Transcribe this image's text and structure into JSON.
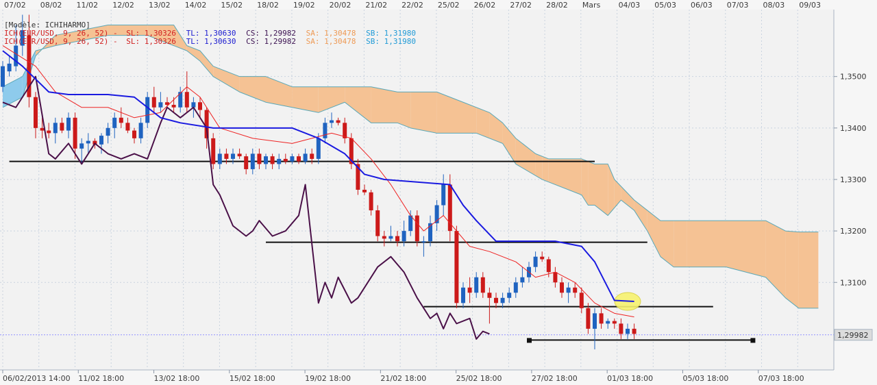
{
  "chart_data": {
    "type": "candlestick",
    "instrument": "EUR/USD",
    "header": "[Modèle: ICHIHARMO]",
    "indicator_lines": [
      {
        "prefix": "ICH(EUR/USD, 9, 26, 52) -",
        "items": [
          {
            "text": "SL: 1,30326",
            "color": "#d02020"
          },
          {
            "text": "TL: 1,30630",
            "color": "#1a1ad0"
          },
          {
            "text": "CS: 1,29982",
            "color": "#3a1050"
          },
          {
            "text": "SA: 1,30478",
            "color": "#ee9a55"
          },
          {
            "text": "SB: 1,31980",
            "color": "#1f9ad6"
          }
        ]
      },
      {
        "prefix": "ICH(EUR/USD, 9, 26, 52) -",
        "items": [
          {
            "text": "SL: 1,30326",
            "color": "#d02020"
          },
          {
            "text": "TL: 1,30630",
            "color": "#1a1ad0"
          },
          {
            "text": "CS: 1,29982",
            "color": "#3a1050"
          },
          {
            "text": "SA: 1,30478",
            "color": "#ee9a55"
          },
          {
            "text": "SB: 1,31980",
            "color": "#1f9ad6"
          }
        ]
      }
    ],
    "top_dates": [
      "07/02",
      "08/02",
      "11/02",
      "12/02",
      "13/02",
      "14/02",
      "15/02",
      "18/02",
      "19/02",
      "20/02",
      "21/02",
      "22/02",
      "25/02",
      "26/02",
      "27/02",
      "28/02",
      "Mars",
      "04/03",
      "05/03",
      "06/03",
      "07/03",
      "08/03",
      "09/03"
    ],
    "bottom_dates": [
      "06/02/2013 14:00",
      "11/02 18:00",
      "13/02 18:00",
      "15/02 18:00",
      "19/02 18:00",
      "21/02 18:00",
      "25/02 18:00",
      "27/02 18:00",
      "01/03 18:00",
      "05/03 18:00",
      "07/03 18:00"
    ],
    "y_ticks": [
      "1,3500",
      "1,3400",
      "1,3300",
      "1,3200",
      "1,3100"
    ],
    "y_tick_values": [
      1.35,
      1.34,
      1.33,
      1.32,
      1.31
    ],
    "ylim": [
      1.293,
      1.363
    ],
    "current_price_label": "1,29982",
    "current_price": 1.29982,
    "colors": {
      "bull": "#1f63c0",
      "bear": "#cc1a1a",
      "tenkan": "#ee2222",
      "kijun": "#1a1ae0",
      "chikou": "#4a1048",
      "kumo_bull": "#8ecbec",
      "kumo_bear": "#f5c294",
      "kumo_edge": "#5aa8b8",
      "grid": "#c9d3df",
      "price_line": "#8f8fff"
    },
    "candles": [
      [
        1.348,
        1.353,
        1.347,
        1.352
      ],
      [
        1.351,
        1.354,
        1.35,
        1.3525
      ],
      [
        1.352,
        1.36,
        1.351,
        1.356
      ],
      [
        1.356,
        1.362,
        1.354,
        1.359
      ],
      [
        1.358,
        1.362,
        1.344,
        1.346
      ],
      [
        1.346,
        1.347,
        1.338,
        1.34
      ],
      [
        1.34,
        1.342,
        1.338,
        1.3395
      ],
      [
        1.3395,
        1.341,
        1.338,
        1.339
      ],
      [
        1.339,
        1.342,
        1.337,
        1.341
      ],
      [
        1.341,
        1.342,
        1.339,
        1.3395
      ],
      [
        1.3395,
        1.343,
        1.338,
        1.342
      ],
      [
        1.342,
        1.343,
        1.334,
        1.336
      ],
      [
        1.336,
        1.338,
        1.333,
        1.337
      ],
      [
        1.337,
        1.339,
        1.335,
        1.3375
      ],
      [
        1.3375,
        1.338,
        1.336,
        1.3368
      ],
      [
        1.3368,
        1.339,
        1.335,
        1.3385
      ],
      [
        1.3385,
        1.341,
        1.337,
        1.34
      ],
      [
        1.34,
        1.343,
        1.338,
        1.342
      ],
      [
        1.342,
        1.344,
        1.34,
        1.341
      ],
      [
        1.341,
        1.342,
        1.339,
        1.3395
      ],
      [
        1.3395,
        1.34,
        1.337,
        1.338
      ],
      [
        1.338,
        1.342,
        1.337,
        1.341
      ],
      [
        1.341,
        1.347,
        1.34,
        1.346
      ],
      [
        1.346,
        1.348,
        1.343,
        1.344
      ],
      [
        1.344,
        1.347,
        1.343,
        1.345
      ],
      [
        1.345,
        1.346,
        1.344,
        1.3445
      ],
      [
        1.3445,
        1.346,
        1.343,
        1.344
      ],
      [
        1.344,
        1.348,
        1.343,
        1.347
      ],
      [
        1.347,
        1.351,
        1.343,
        1.344
      ],
      [
        1.344,
        1.346,
        1.342,
        1.345
      ],
      [
        1.345,
        1.346,
        1.342,
        1.3435
      ],
      [
        1.3435,
        1.344,
        1.336,
        1.338
      ],
      [
        1.338,
        1.339,
        1.332,
        1.333
      ],
      [
        1.333,
        1.336,
        1.332,
        1.335
      ],
      [
        1.335,
        1.336,
        1.333,
        1.334
      ],
      [
        1.334,
        1.336,
        1.333,
        1.335
      ],
      [
        1.335,
        1.336,
        1.334,
        1.3345
      ],
      [
        1.3345,
        1.335,
        1.331,
        1.332
      ],
      [
        1.332,
        1.336,
        1.331,
        1.335
      ],
      [
        1.335,
        1.336,
        1.332,
        1.333
      ],
      [
        1.333,
        1.335,
        1.332,
        1.3345
      ],
      [
        1.3345,
        1.335,
        1.332,
        1.333
      ],
      [
        1.333,
        1.335,
        1.332,
        1.334
      ],
      [
        1.334,
        1.335,
        1.333,
        1.3335
      ],
      [
        1.3335,
        1.335,
        1.333,
        1.3345
      ],
      [
        1.3345,
        1.335,
        1.333,
        1.3335
      ],
      [
        1.3335,
        1.336,
        1.333,
        1.335
      ],
      [
        1.335,
        1.336,
        1.333,
        1.334
      ],
      [
        1.334,
        1.339,
        1.333,
        1.338
      ],
      [
        1.338,
        1.342,
        1.337,
        1.341
      ],
      [
        1.341,
        1.343,
        1.34,
        1.3415
      ],
      [
        1.3415,
        1.342,
        1.3405,
        1.341
      ],
      [
        1.341,
        1.342,
        1.337,
        1.338
      ],
      [
        1.338,
        1.339,
        1.332,
        1.333
      ],
      [
        1.333,
        1.334,
        1.327,
        1.328
      ],
      [
        1.328,
        1.329,
        1.327,
        1.3275
      ],
      [
        1.3275,
        1.328,
        1.323,
        1.324
      ],
      [
        1.324,
        1.325,
        1.318,
        1.319
      ],
      [
        1.319,
        1.32,
        1.317,
        1.3185
      ],
      [
        1.3185,
        1.321,
        1.318,
        1.319
      ],
      [
        1.319,
        1.32,
        1.317,
        1.318
      ],
      [
        1.318,
        1.322,
        1.317,
        1.32
      ],
      [
        1.32,
        1.324,
        1.319,
        1.323
      ],
      [
        1.323,
        1.324,
        1.317,
        1.318
      ],
      [
        1.318,
        1.319,
        1.315,
        1.318
      ],
      [
        1.318,
        1.323,
        1.317,
        1.3215
      ],
      [
        1.3215,
        1.326,
        1.32,
        1.325
      ],
      [
        1.325,
        1.331,
        1.323,
        1.329
      ],
      [
        1.329,
        1.331,
        1.318,
        1.32
      ],
      [
        1.32,
        1.321,
        1.305,
        1.306
      ],
      [
        1.306,
        1.31,
        1.305,
        1.309
      ],
      [
        1.309,
        1.311,
        1.306,
        1.308
      ],
      [
        1.308,
        1.312,
        1.307,
        1.311
      ],
      [
        1.311,
        1.312,
        1.307,
        1.308
      ],
      [
        1.308,
        1.309,
        1.302,
        1.307
      ],
      [
        1.307,
        1.308,
        1.305,
        1.306
      ],
      [
        1.306,
        1.308,
        1.305,
        1.307
      ],
      [
        1.307,
        1.309,
        1.306,
        1.308
      ],
      [
        1.308,
        1.311,
        1.307,
        1.31
      ],
      [
        1.31,
        1.313,
        1.309,
        1.311
      ],
      [
        1.311,
        1.314,
        1.31,
        1.313
      ],
      [
        1.313,
        1.316,
        1.312,
        1.315
      ],
      [
        1.315,
        1.316,
        1.314,
        1.3145
      ],
      [
        1.3145,
        1.315,
        1.311,
        1.312
      ],
      [
        1.312,
        1.313,
        1.309,
        1.31
      ],
      [
        1.31,
        1.311,
        1.307,
        1.308
      ],
      [
        1.308,
        1.31,
        1.306,
        1.309
      ],
      [
        1.309,
        1.31,
        1.307,
        1.308
      ],
      [
        1.308,
        1.309,
        1.304,
        1.305
      ],
      [
        1.305,
        1.306,
        1.3,
        1.301
      ],
      [
        1.301,
        1.305,
        1.297,
        1.304
      ],
      [
        1.304,
        1.305,
        1.301,
        1.302
      ],
      [
        1.302,
        1.303,
        1.301,
        1.3025
      ],
      [
        1.3025,
        1.303,
        1.301,
        1.302
      ],
      [
        1.302,
        1.303,
        1.299,
        1.3
      ],
      [
        1.3,
        1.302,
        1.299,
        1.301
      ],
      [
        1.301,
        1.302,
        1.299,
        1.3
      ]
    ],
    "tenkan": [
      [
        0,
        1.356
      ],
      [
        5,
        1.352
      ],
      [
        8,
        1.347
      ],
      [
        12,
        1.344
      ],
      [
        16,
        1.344
      ],
      [
        20,
        1.342
      ],
      [
        24,
        1.343
      ],
      [
        28,
        1.348
      ],
      [
        30,
        1.346
      ],
      [
        33,
        1.34
      ],
      [
        38,
        1.338
      ],
      [
        44,
        1.337
      ],
      [
        50,
        1.339
      ],
      [
        53,
        1.338
      ],
      [
        56,
        1.334
      ],
      [
        59,
        1.329
      ],
      [
        62,
        1.323
      ],
      [
        64,
        1.32
      ],
      [
        67,
        1.323
      ],
      [
        69,
        1.32
      ],
      [
        71,
        1.317
      ],
      [
        74,
        1.316
      ],
      [
        78,
        1.314
      ],
      [
        81,
        1.311
      ],
      [
        84,
        1.312
      ],
      [
        87,
        1.31
      ],
      [
        90,
        1.306
      ],
      [
        93,
        1.304
      ],
      [
        96,
        1.3033
      ]
    ],
    "kijun": [
      [
        0,
        1.355
      ],
      [
        3,
        1.352
      ],
      [
        7,
        1.347
      ],
      [
        10,
        1.3465
      ],
      [
        16,
        1.3465
      ],
      [
        20,
        1.346
      ],
      [
        24,
        1.342
      ],
      [
        27,
        1.341
      ],
      [
        32,
        1.34
      ],
      [
        44,
        1.34
      ],
      [
        48,
        1.338
      ],
      [
        52,
        1.335
      ],
      [
        55,
        1.331
      ],
      [
        58,
        1.33
      ],
      [
        68,
        1.329
      ],
      [
        70,
        1.325
      ],
      [
        72,
        1.322
      ],
      [
        75,
        1.318
      ],
      [
        84,
        1.318
      ],
      [
        88,
        1.317
      ],
      [
        90,
        1.314
      ],
      [
        92,
        1.309
      ],
      [
        93,
        1.3065
      ],
      [
        96,
        1.3063
      ]
    ],
    "chikou": [
      [
        0,
        1.345
      ],
      [
        2,
        1.344
      ],
      [
        5,
        1.35
      ],
      [
        7,
        1.335
      ],
      [
        8,
        1.334
      ],
      [
        10,
        1.337
      ],
      [
        12,
        1.333
      ],
      [
        14,
        1.337
      ],
      [
        16,
        1.335
      ],
      [
        18,
        1.334
      ],
      [
        20,
        1.335
      ],
      [
        22,
        1.334
      ],
      [
        24,
        1.341
      ],
      [
        25,
        1.344
      ],
      [
        27,
        1.342
      ],
      [
        29,
        1.344
      ],
      [
        31,
        1.34
      ],
      [
        32,
        1.329
      ],
      [
        33,
        1.327
      ],
      [
        35,
        1.321
      ],
      [
        37,
        1.319
      ],
      [
        38,
        1.32
      ],
      [
        39,
        1.322
      ],
      [
        41,
        1.319
      ],
      [
        43,
        1.32
      ],
      [
        45,
        1.323
      ],
      [
        46,
        1.329
      ],
      [
        48,
        1.306
      ],
      [
        49,
        1.31
      ],
      [
        50,
        1.307
      ],
      [
        51,
        1.311
      ],
      [
        53,
        1.306
      ],
      [
        54,
        1.307
      ],
      [
        57,
        1.313
      ],
      [
        59,
        1.315
      ],
      [
        61,
        1.312
      ],
      [
        63,
        1.307
      ],
      [
        64,
        1.305
      ],
      [
        65,
        1.303
      ],
      [
        66,
        1.304
      ],
      [
        67,
        1.301
      ],
      [
        68,
        1.304
      ],
      [
        69,
        1.302
      ],
      [
        71,
        1.303
      ],
      [
        72,
        1.299
      ],
      [
        73,
        1.3005
      ],
      [
        74,
        1.3
      ]
    ],
    "span_a": [
      [
        0,
        1.348
      ],
      [
        3,
        1.35
      ],
      [
        5,
        1.355
      ],
      [
        8,
        1.356
      ],
      [
        16,
        1.358
      ],
      [
        22,
        1.358
      ],
      [
        26,
        1.356
      ],
      [
        28,
        1.355
      ],
      [
        30,
        1.353
      ],
      [
        32,
        1.35
      ],
      [
        36,
        1.347
      ],
      [
        40,
        1.345
      ],
      [
        44,
        1.344
      ],
      [
        48,
        1.343
      ],
      [
        52,
        1.345
      ],
      [
        56,
        1.341
      ],
      [
        60,
        1.341
      ],
      [
        62,
        1.34
      ],
      [
        66,
        1.339
      ],
      [
        72,
        1.339
      ],
      [
        76,
        1.337
      ],
      [
        78,
        1.333
      ],
      [
        82,
        1.33
      ],
      [
        88,
        1.327
      ],
      [
        89,
        1.325
      ],
      [
        90,
        1.325
      ],
      [
        92,
        1.323
      ],
      [
        94,
        1.326
      ],
      [
        96,
        1.324
      ],
      [
        98,
        1.32
      ],
      [
        100,
        1.315
      ],
      [
        102,
        1.313
      ],
      [
        105,
        1.313
      ],
      [
        110,
        1.313
      ],
      [
        116,
        1.311
      ],
      [
        119,
        1.307
      ],
      [
        121,
        1.305
      ],
      [
        124,
        1.305
      ]
    ],
    "span_b": [
      [
        0,
        1.344
      ],
      [
        3,
        1.346
      ],
      [
        5,
        1.354
      ],
      [
        8,
        1.358
      ],
      [
        16,
        1.36
      ],
      [
        22,
        1.36
      ],
      [
        26,
        1.36
      ],
      [
        28,
        1.356
      ],
      [
        30,
        1.355
      ],
      [
        32,
        1.352
      ],
      [
        36,
        1.35
      ],
      [
        40,
        1.35
      ],
      [
        44,
        1.348
      ],
      [
        48,
        1.348
      ],
      [
        52,
        1.348
      ],
      [
        56,
        1.348
      ],
      [
        60,
        1.347
      ],
      [
        66,
        1.347
      ],
      [
        70,
        1.345
      ],
      [
        74,
        1.343
      ],
      [
        76,
        1.341
      ],
      [
        78,
        1.338
      ],
      [
        81,
        1.335
      ],
      [
        83,
        1.334
      ],
      [
        88,
        1.334
      ],
      [
        90,
        1.333
      ],
      [
        92,
        1.333
      ],
      [
        93,
        1.33
      ],
      [
        96,
        1.326
      ],
      [
        98,
        1.324
      ],
      [
        100,
        1.322
      ],
      [
        104,
        1.322
      ],
      [
        110,
        1.322
      ],
      [
        116,
        1.322
      ],
      [
        119,
        1.32
      ],
      [
        121,
        1.3198
      ],
      [
        124,
        1.3198
      ]
    ],
    "horizontal_lines": [
      {
        "from": 1,
        "to": 90,
        "y": 1.3335,
        "color": "#111111"
      },
      {
        "from": 40,
        "to": 98,
        "y": 1.3178,
        "color": "#111111"
      },
      {
        "from": 64,
        "to": 108,
        "y": 1.3053,
        "color": "#111111"
      },
      {
        "from": 80,
        "to": 114,
        "y": 1.2988,
        "color": "#111111"
      }
    ],
    "highlight": {
      "x": 95,
      "y": 1.3063,
      "color": "#f7f270"
    }
  }
}
